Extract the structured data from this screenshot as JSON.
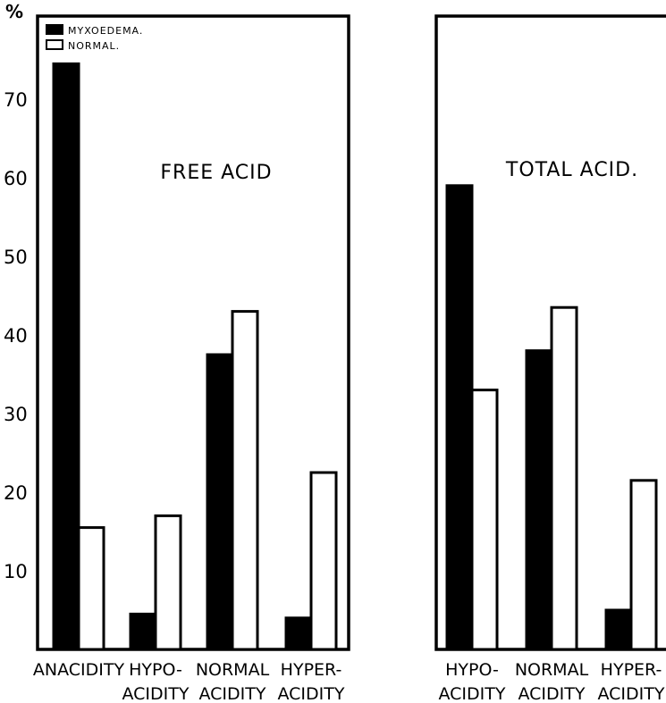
{
  "y_unit": "%",
  "legend": [
    {
      "label": "MYXOEDEMA.",
      "color": "#000000"
    },
    {
      "label": "NORMAL.",
      "color": "#ffffff"
    }
  ],
  "chart_data": [
    {
      "type": "bar",
      "title": "FREE ACID",
      "categories": [
        [
          "ANACIDITY",
          ""
        ],
        [
          "HYPO-",
          "ACIDITY"
        ],
        [
          "NORMAL",
          "ACIDITY"
        ],
        [
          "HYPER-",
          "ACIDITY"
        ]
      ],
      "series": [
        {
          "name": "MYXOEDEMA.",
          "values": [
            74.5,
            4.5,
            37.5,
            4
          ]
        },
        {
          "name": "NORMAL.",
          "values": [
            15.5,
            17,
            43,
            22.5
          ]
        }
      ],
      "yticks": [
        10,
        20,
        30,
        40,
        50,
        60,
        70
      ],
      "ylim": [
        0,
        80
      ]
    },
    {
      "type": "bar",
      "title": "TOTAL ACID.",
      "categories": [
        [
          "HYPO-",
          "ACIDITY"
        ],
        [
          "NORMAL",
          "ACIDITY"
        ],
        [
          "HYPER-",
          "ACIDITY"
        ]
      ],
      "series": [
        {
          "name": "MYXOEDEMA.",
          "values": [
            59,
            38,
            5
          ]
        },
        {
          "name": "NORMAL.",
          "values": [
            33,
            43.5,
            21.5
          ]
        }
      ],
      "ylim": [
        0,
        80
      ]
    }
  ]
}
